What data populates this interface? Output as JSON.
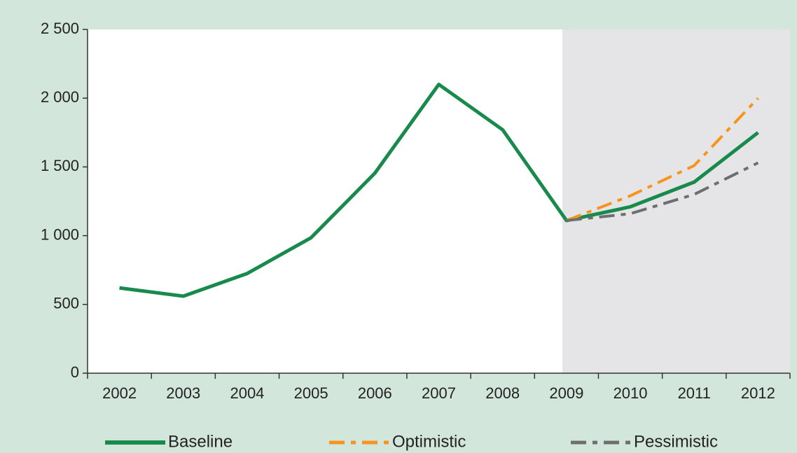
{
  "chart_data": {
    "type": "line",
    "categories": [
      "2002",
      "2003",
      "2004",
      "2005",
      "2006",
      "2007",
      "2008",
      "2009",
      "2010",
      "2011",
      "2012"
    ],
    "series": [
      {
        "name": "Baseline",
        "color": "#178a4c",
        "dash": "solid",
        "values": [
          620,
          560,
          725,
          985,
          1455,
          2100,
          1770,
          1110,
          1210,
          1390,
          1750
        ]
      },
      {
        "name": "Optimistic",
        "color": "#f7941d",
        "dash": "dash-dot",
        "values": [
          null,
          null,
          null,
          null,
          null,
          null,
          null,
          1110,
          1290,
          1510,
          2000
        ]
      },
      {
        "name": "Pessimistic",
        "color": "#6d6e71",
        "dash": "dash-dot",
        "values": [
          null,
          null,
          null,
          null,
          null,
          null,
          null,
          1110,
          1160,
          1300,
          1530
        ]
      }
    ],
    "ylim": [
      0,
      2500
    ],
    "yticks": [
      0,
      500,
      {
        "value": 1000,
        "label": "1 000"
      },
      {
        "value": 1500,
        "label": "1 500"
      },
      {
        "value": 2000,
        "label": "2 000"
      },
      {
        "value": 2500,
        "label": "2 500"
      }
    ],
    "grid": false,
    "legend": "bottom"
  }
}
